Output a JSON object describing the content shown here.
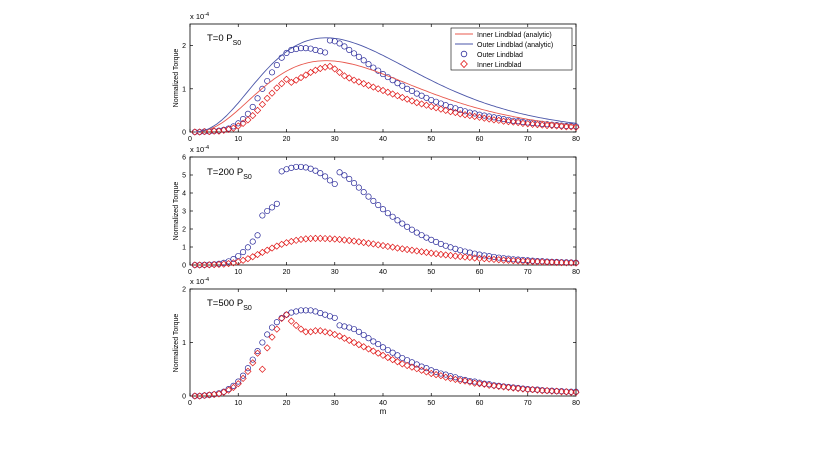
{
  "figure": {
    "xlabel": "m",
    "ylabel": "Normalized Torque",
    "exponent_label": "x 10",
    "exponent_power": "-4",
    "legend": [
      {
        "label": "Inner Lindblad (analytic)",
        "style": "line",
        "color": "#e8584e"
      },
      {
        "label": "Outer Lindblad (analytic)",
        "style": "line",
        "color": "#4a55a8"
      },
      {
        "label": "Outer Lindblad",
        "style": "circle",
        "color": "#2a2a9a"
      },
      {
        "label": "Inner Lindblad",
        "style": "diamond",
        "color": "#e01818"
      }
    ]
  },
  "chart_data": [
    {
      "type": "scatter",
      "title_main": "T=0 P",
      "title_sub": "S0",
      "xlabel": "",
      "ylabel": "Normalized Torque",
      "y_exponent": "x 10^-4",
      "xlim": [
        0,
        80
      ],
      "ylim": [
        0,
        2.5
      ],
      "xticks": [
        0,
        10,
        20,
        30,
        40,
        50,
        60,
        70,
        80
      ],
      "yticks": [
        0,
        1,
        2
      ],
      "legend_position": "top-right",
      "series": [
        {
          "name": "Outer Lindblad",
          "marker": "circle",
          "color": "#2a2a9a",
          "x": [
            1,
            2,
            3,
            4,
            5,
            6,
            7,
            8,
            9,
            10,
            11,
            12,
            13,
            14,
            15,
            16,
            17,
            18,
            19,
            20,
            21,
            22,
            23,
            24,
            25,
            26,
            27,
            28,
            29,
            30,
            31,
            32,
            33,
            34,
            35,
            36,
            37,
            38,
            39,
            40,
            41,
            42,
            43,
            44,
            45,
            46,
            47,
            48,
            49,
            50,
            51,
            52,
            53,
            54,
            55,
            56,
            57,
            58,
            59,
            60,
            61,
            62,
            63,
            64,
            65,
            66,
            67,
            68,
            69,
            70,
            71,
            72,
            73,
            74,
            75,
            76,
            77,
            78,
            79,
            80
          ],
          "y": [
            0,
            0,
            0.01,
            0.01,
            0.02,
            0.03,
            0.05,
            0.08,
            0.13,
            0.2,
            0.3,
            0.42,
            0.58,
            0.78,
            1.0,
            1.18,
            1.38,
            1.55,
            1.72,
            1.83,
            1.9,
            1.92,
            1.94,
            1.94,
            1.93,
            1.9,
            1.87,
            1.84,
            2.12,
            2.1,
            2.05,
            1.98,
            1.9,
            1.82,
            1.74,
            1.66,
            1.57,
            1.49,
            1.42,
            1.34,
            1.27,
            1.2,
            1.13,
            1.07,
            1.0,
            0.95,
            0.89,
            0.84,
            0.79,
            0.74,
            0.7,
            0.66,
            0.62,
            0.58,
            0.55,
            0.51,
            0.48,
            0.45,
            0.43,
            0.4,
            0.38,
            0.36,
            0.34,
            0.32,
            0.3,
            0.28,
            0.26,
            0.25,
            0.23,
            0.22,
            0.21,
            0.2,
            0.19,
            0.18,
            0.17,
            0.16,
            0.15,
            0.14,
            0.14,
            0.13
          ]
        },
        {
          "name": "Inner Lindblad",
          "marker": "diamond",
          "color": "#e01818",
          "x": [
            1,
            2,
            3,
            4,
            5,
            6,
            7,
            8,
            9,
            10,
            11,
            12,
            13,
            14,
            15,
            16,
            17,
            18,
            19,
            20,
            21,
            22,
            23,
            24,
            25,
            26,
            27,
            28,
            29,
            30,
            31,
            32,
            33,
            34,
            35,
            36,
            37,
            38,
            39,
            40,
            41,
            42,
            43,
            44,
            45,
            46,
            47,
            48,
            49,
            50,
            51,
            52,
            53,
            54,
            55,
            56,
            57,
            58,
            59,
            60,
            61,
            62,
            63,
            64,
            65,
            66,
            67,
            68,
            69,
            70,
            71,
            72,
            73,
            74,
            75,
            76,
            77,
            78,
            79,
            80
          ],
          "y": [
            0,
            0,
            0.01,
            0.01,
            0.02,
            0.02,
            0.04,
            0.06,
            0.09,
            0.14,
            0.2,
            0.28,
            0.38,
            0.5,
            0.64,
            0.78,
            0.9,
            1.02,
            1.12,
            1.22,
            1.15,
            1.2,
            1.26,
            1.32,
            1.38,
            1.43,
            1.47,
            1.5,
            1.52,
            1.46,
            1.38,
            1.3,
            1.25,
            1.2,
            1.16,
            1.12,
            1.08,
            1.04,
            1.0,
            0.96,
            0.92,
            0.88,
            0.84,
            0.8,
            0.76,
            0.72,
            0.68,
            0.65,
            0.62,
            0.59,
            0.56,
            0.53,
            0.5,
            0.47,
            0.45,
            0.42,
            0.4,
            0.38,
            0.36,
            0.34,
            0.32,
            0.3,
            0.28,
            0.27,
            0.25,
            0.24,
            0.23,
            0.22,
            0.2,
            0.19,
            0.18,
            0.17,
            0.16,
            0.15,
            0.15,
            0.14,
            0.13,
            0.12,
            0.12,
            0.11
          ]
        },
        {
          "name": "Inner Lindblad (analytic)",
          "line": true,
          "color": "#e8584e",
          "model": "inner"
        },
        {
          "name": "Outer Lindblad (analytic)",
          "line": true,
          "color": "#4a55a8",
          "model": "outer"
        }
      ]
    },
    {
      "type": "scatter",
      "title_main": "T=200 P",
      "title_sub": "S0",
      "xlabel": "",
      "ylabel": "Normalized Torque",
      "y_exponent": "x 10^-4",
      "xlim": [
        0,
        80
      ],
      "ylim": [
        0,
        6
      ],
      "xticks": [
        0,
        10,
        20,
        30,
        40,
        50,
        60,
        70,
        80
      ],
      "yticks": [
        0,
        1,
        2,
        3,
        4,
        5,
        6
      ],
      "series": [
        {
          "name": "Outer Lindblad",
          "marker": "circle",
          "color": "#2a2a9a",
          "x": [
            1,
            2,
            3,
            4,
            5,
            6,
            7,
            8,
            9,
            10,
            11,
            12,
            13,
            14,
            15,
            16,
            17,
            18,
            19,
            20,
            21,
            22,
            23,
            24,
            25,
            26,
            27,
            28,
            29,
            30,
            31,
            32,
            33,
            34,
            35,
            36,
            37,
            38,
            39,
            40,
            41,
            42,
            43,
            44,
            45,
            46,
            47,
            48,
            49,
            50,
            51,
            52,
            53,
            54,
            55,
            56,
            57,
            58,
            59,
            60,
            61,
            62,
            63,
            64,
            65,
            66,
            67,
            68,
            69,
            70,
            71,
            72,
            73,
            74,
            75,
            76,
            77,
            78,
            79,
            80
          ],
          "y": [
            0,
            0,
            0.01,
            0.02,
            0.04,
            0.07,
            0.12,
            0.2,
            0.33,
            0.5,
            0.72,
            0.98,
            1.3,
            1.65,
            2.75,
            3.0,
            3.2,
            3.4,
            5.2,
            5.32,
            5.4,
            5.45,
            5.45,
            5.42,
            5.35,
            5.24,
            5.1,
            4.92,
            4.7,
            4.5,
            5.15,
            4.98,
            4.78,
            4.55,
            4.3,
            4.05,
            3.8,
            3.56,
            3.33,
            3.1,
            2.88,
            2.68,
            2.48,
            2.3,
            2.12,
            1.96,
            1.8,
            1.66,
            1.52,
            1.4,
            1.28,
            1.17,
            1.07,
            0.98,
            0.9,
            0.82,
            0.75,
            0.69,
            0.63,
            0.58,
            0.53,
            0.49,
            0.45,
            0.41,
            0.38,
            0.35,
            0.32,
            0.3,
            0.28,
            0.26,
            0.24,
            0.22,
            0.21,
            0.19,
            0.18,
            0.17,
            0.16,
            0.15,
            0.14,
            0.13
          ]
        },
        {
          "name": "Inner Lindblad",
          "marker": "diamond",
          "color": "#e01818",
          "x": [
            1,
            2,
            3,
            4,
            5,
            6,
            7,
            8,
            9,
            10,
            11,
            12,
            13,
            14,
            15,
            16,
            17,
            18,
            19,
            20,
            21,
            22,
            23,
            24,
            25,
            26,
            27,
            28,
            29,
            30,
            31,
            32,
            33,
            34,
            35,
            36,
            37,
            38,
            39,
            40,
            41,
            42,
            43,
            44,
            45,
            46,
            47,
            48,
            49,
            50,
            51,
            52,
            53,
            54,
            55,
            56,
            57,
            58,
            59,
            60,
            61,
            62,
            63,
            64,
            65,
            66,
            67,
            68,
            69,
            70,
            71,
            72,
            73,
            74,
            75,
            76,
            77,
            78,
            79,
            80
          ],
          "y": [
            0,
            0,
            0,
            0.01,
            0.02,
            0.03,
            0.05,
            0.08,
            0.12,
            0.18,
            0.26,
            0.35,
            0.46,
            0.58,
            0.7,
            0.82,
            0.94,
            1.05,
            1.15,
            1.24,
            1.31,
            1.37,
            1.42,
            1.45,
            1.47,
            1.48,
            1.48,
            1.47,
            1.46,
            1.44,
            1.42,
            1.39,
            1.36,
            1.33,
            1.29,
            1.25,
            1.21,
            1.17,
            1.12,
            1.08,
            1.03,
            0.99,
            0.94,
            0.9,
            0.86,
            0.82,
            0.78,
            0.74,
            0.7,
            0.66,
            0.63,
            0.59,
            0.56,
            0.53,
            0.5,
            0.47,
            0.44,
            0.42,
            0.39,
            0.37,
            0.35,
            0.33,
            0.31,
            0.29,
            0.27,
            0.26,
            0.24,
            0.23,
            0.21,
            0.2,
            0.19,
            0.18,
            0.17,
            0.16,
            0.15,
            0.14,
            0.13,
            0.12,
            0.12,
            0.11
          ]
        }
      ]
    },
    {
      "type": "scatter",
      "title_main": "T=500 P",
      "title_sub": "S0",
      "xlabel": "m",
      "ylabel": "Normalized Torque",
      "y_exponent": "x 10^-4",
      "xlim": [
        0,
        80
      ],
      "ylim": [
        0,
        2
      ],
      "xticks": [
        0,
        10,
        20,
        30,
        40,
        50,
        60,
        70,
        80
      ],
      "yticks": [
        0,
        1,
        2
      ],
      "series": [
        {
          "name": "Outer Lindblad",
          "marker": "circle",
          "color": "#2a2a9a",
          "x": [
            1,
            2,
            3,
            4,
            5,
            6,
            7,
            8,
            9,
            10,
            11,
            12,
            13,
            14,
            15,
            16,
            17,
            18,
            19,
            20,
            21,
            22,
            23,
            24,
            25,
            26,
            27,
            28,
            29,
            30,
            31,
            32,
            33,
            34,
            35,
            36,
            37,
            38,
            39,
            40,
            41,
            42,
            43,
            44,
            45,
            46,
            47,
            48,
            49,
            50,
            51,
            52,
            53,
            54,
            55,
            56,
            57,
            58,
            59,
            60,
            61,
            62,
            63,
            64,
            65,
            66,
            67,
            68,
            69,
            70,
            71,
            72,
            73,
            74,
            75,
            76,
            77,
            78,
            79,
            80
          ],
          "y": [
            0,
            0,
            0.01,
            0.02,
            0.03,
            0.05,
            0.08,
            0.13,
            0.19,
            0.27,
            0.38,
            0.52,
            0.68,
            0.84,
            1.0,
            1.15,
            1.28,
            1.38,
            1.46,
            1.52,
            1.56,
            1.58,
            1.6,
            1.6,
            1.6,
            1.58,
            1.55,
            1.52,
            1.49,
            1.46,
            1.32,
            1.3,
            1.28,
            1.25,
            1.2,
            1.14,
            1.08,
            1.02,
            0.97,
            0.91,
            0.86,
            0.81,
            0.76,
            0.71,
            0.67,
            0.63,
            0.59,
            0.55,
            0.52,
            0.48,
            0.45,
            0.42,
            0.4,
            0.37,
            0.35,
            0.32,
            0.3,
            0.28,
            0.27,
            0.25,
            0.23,
            0.22,
            0.2,
            0.19,
            0.18,
            0.17,
            0.16,
            0.15,
            0.14,
            0.13,
            0.12,
            0.12,
            0.11,
            0.1,
            0.1,
            0.09,
            0.09,
            0.08,
            0.08,
            0.08
          ]
        },
        {
          "name": "Inner Lindblad",
          "marker": "diamond",
          "color": "#e01818",
          "x": [
            1,
            2,
            3,
            4,
            5,
            6,
            7,
            8,
            9,
            10,
            11,
            12,
            13,
            14,
            15,
            16,
            17,
            18,
            19,
            20,
            21,
            22,
            23,
            24,
            25,
            26,
            27,
            28,
            29,
            30,
            31,
            32,
            33,
            34,
            35,
            36,
            37,
            38,
            39,
            40,
            41,
            42,
            43,
            44,
            45,
            46,
            47,
            48,
            49,
            50,
            51,
            52,
            53,
            54,
            55,
            56,
            57,
            58,
            59,
            60,
            61,
            62,
            63,
            64,
            65,
            66,
            67,
            68,
            69,
            70,
            71,
            72,
            73,
            74,
            75,
            76,
            77,
            78,
            79,
            80
          ],
          "y": [
            0,
            0,
            0.01,
            0.02,
            0.03,
            0.04,
            0.07,
            0.11,
            0.16,
            0.23,
            0.33,
            0.46,
            0.62,
            0.8,
            0.5,
            0.9,
            1.1,
            1.25,
            1.45,
            1.52,
            1.4,
            1.32,
            1.25,
            1.2,
            1.2,
            1.22,
            1.22,
            1.2,
            1.18,
            1.15,
            1.12,
            1.08,
            1.04,
            1.0,
            0.96,
            0.92,
            0.88,
            0.84,
            0.8,
            0.76,
            0.72,
            0.68,
            0.64,
            0.6,
            0.57,
            0.54,
            0.51,
            0.48,
            0.45,
            0.42,
            0.4,
            0.38,
            0.35,
            0.33,
            0.31,
            0.29,
            0.28,
            0.26,
            0.24,
            0.23,
            0.22,
            0.2,
            0.19,
            0.18,
            0.17,
            0.16,
            0.15,
            0.14,
            0.13,
            0.12,
            0.12,
            0.11,
            0.1,
            0.1,
            0.09,
            0.09,
            0.08,
            0.08,
            0.07,
            0.07
          ]
        }
      ]
    }
  ]
}
